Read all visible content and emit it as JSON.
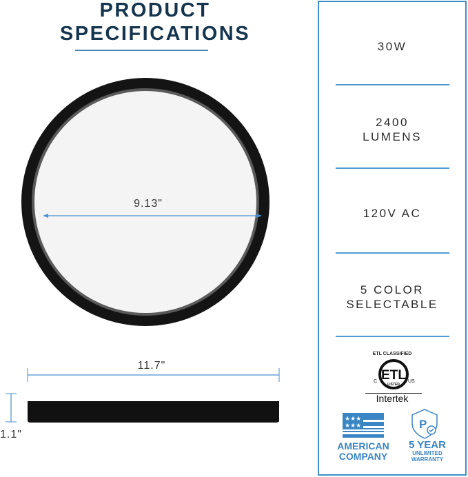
{
  "title": {
    "line1": "PRODUCT",
    "line2": "SPECIFICATIONS"
  },
  "specs": [
    {
      "line1": "30W",
      "line2": ""
    },
    {
      "line1": "2400",
      "line2": "LUMENS"
    },
    {
      "line1": "120V AC",
      "line2": ""
    },
    {
      "line1": "5 COLOR",
      "line2": "SELECTABLE"
    }
  ],
  "dimensions": {
    "inner_diameter": "9.13\"",
    "outer_diameter": "11.7\"",
    "height": "1.1\""
  },
  "certification": {
    "heading": "ETL CLASSIFIED",
    "logo_text": "ETL",
    "left": "C",
    "right": "US",
    "listed": "LISTED",
    "brand": "Intertek"
  },
  "badges": {
    "american": {
      "line1": "AMERICAN",
      "line2": "COMPANY",
      "icon": "us-flag-icon"
    },
    "warranty": {
      "line1": "5 YEAR",
      "line2": "UNLIMITED",
      "line3": "WARRANTY",
      "icon": "shield-check-icon"
    }
  },
  "colors": {
    "title": "#14354d",
    "accent": "#3a85c4"
  }
}
